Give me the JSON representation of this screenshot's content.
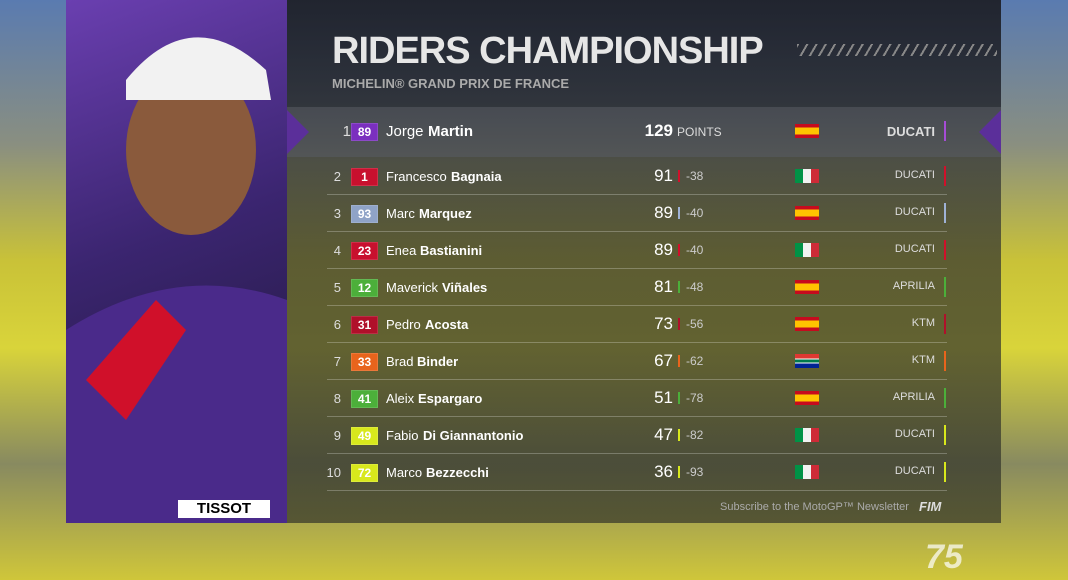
{
  "header": {
    "title": "RIDERS CHAMPIONSHIP",
    "subtitle": "MICHELIN® GRAND PRIX DE FRANCE"
  },
  "leader": {
    "position": 1,
    "number": 89,
    "first_name": "Jorge",
    "last_name": "Martin",
    "points": 129,
    "points_unit": "POINTS",
    "team": "DUCATI",
    "flag": "es",
    "badge_color": "#7b2fbf",
    "team_color": "#a64cd6"
  },
  "table": {
    "rows": [
      {
        "position": 2,
        "number": 1,
        "first_name": "Francesco",
        "last_name": "Bagnaia",
        "points": 91,
        "gap": -38,
        "team": "DUCATI",
        "flag": "it",
        "badge_color": "#c8102e",
        "team_color": "#d0102a"
      },
      {
        "position": 3,
        "number": 93,
        "first_name": "Marc",
        "last_name": "Marquez",
        "points": 89,
        "gap": -40,
        "team": "DUCATI",
        "flag": "es",
        "badge_color": "#8fa3c7",
        "team_color": "#9fb2d6"
      },
      {
        "position": 4,
        "number": 23,
        "first_name": "Enea",
        "last_name": "Bastianini",
        "points": 89,
        "gap": -40,
        "team": "DUCATI",
        "flag": "it",
        "badge_color": "#c8102e",
        "team_color": "#d0102a"
      },
      {
        "position": 5,
        "number": 12,
        "first_name": "Maverick",
        "last_name": "Viñales",
        "points": 81,
        "gap": -48,
        "team": "APRILIA",
        "flag": "es",
        "badge_color": "#4caf3a",
        "team_color": "#4caf3a"
      },
      {
        "position": 6,
        "number": 31,
        "first_name": "Pedro",
        "last_name": "Acosta",
        "points": 73,
        "gap": -56,
        "team": "KTM",
        "flag": "es",
        "badge_color": "#b0102a",
        "team_color": "#b0102a"
      },
      {
        "position": 7,
        "number": 33,
        "first_name": "Brad",
        "last_name": "Binder",
        "points": 67,
        "gap": -62,
        "team": "KTM",
        "flag": "za",
        "badge_color": "#e8641c",
        "team_color": "#e8641c"
      },
      {
        "position": 8,
        "number": 41,
        "first_name": "Aleix",
        "last_name": "Espargaro",
        "points": 51,
        "gap": -78,
        "team": "APRILIA",
        "flag": "es",
        "badge_color": "#4caf3a",
        "team_color": "#4caf3a"
      },
      {
        "position": 9,
        "number": 49,
        "first_name": "Fabio",
        "last_name": "Di Giannantonio",
        "points": 47,
        "gap": -82,
        "team": "DUCATI",
        "flag": "it",
        "badge_color": "#d8e81c",
        "team_color": "#d8e81c"
      },
      {
        "position": 10,
        "number": 72,
        "first_name": "Marco",
        "last_name": "Bezzecchi",
        "points": 36,
        "gap": -93,
        "team": "DUCATI",
        "flag": "it",
        "badge_color": "#d8e81c",
        "team_color": "#d8e81c"
      }
    ]
  },
  "footer": {
    "newsletter": "Subscribe to the MotoGP™ Newsletter",
    "fim": "FIM"
  },
  "photo": {
    "sponsor": "TISSOT"
  },
  "logo": "75"
}
